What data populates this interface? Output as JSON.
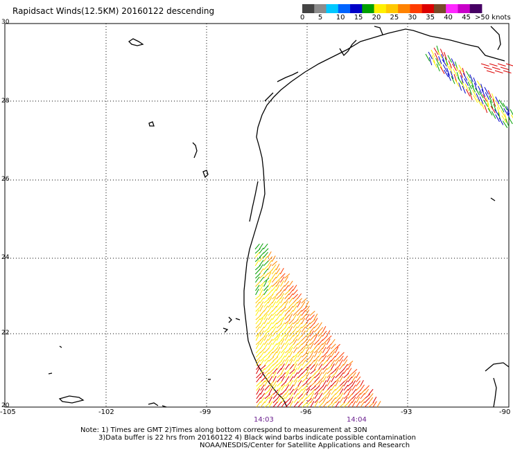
{
  "title": "Rapidsact Winds(12.5KM) 20160122 descending",
  "colorbar": {
    "colors": [
      "#444444",
      "#8c8c8c",
      "#00c8ff",
      "#0064ff",
      "#0000c8",
      "#00a000",
      "#fff000",
      "#ffc800",
      "#ff8200",
      "#ff3c00",
      "#dc0000",
      "#784a28",
      "#ff28ff",
      "#c800c8",
      "#460064"
    ],
    "labels": [
      "0",
      "5",
      "10",
      "15",
      "20",
      "25",
      "30",
      "35",
      "40",
      "45",
      ">50 knots"
    ]
  },
  "map": {
    "lon_labels": [
      "-105",
      "-102",
      "-99",
      "-96",
      "-93",
      "-90"
    ],
    "lat_labels": [
      "30",
      "28",
      "26",
      "24",
      "22",
      "20"
    ],
    "time_labels": [
      "14:03",
      "14:04"
    ]
  },
  "notes": {
    "line1": "Note: 1) Times are GMT 2)Times along bottom correspond to measurement at 30N",
    "line2": "3)Data buffer is 22 hrs from 20160122 4) Black wind barbs indicate possible contamination",
    "line3": "NOAA/NESDIS/Center for Satellite Applications and Research"
  }
}
